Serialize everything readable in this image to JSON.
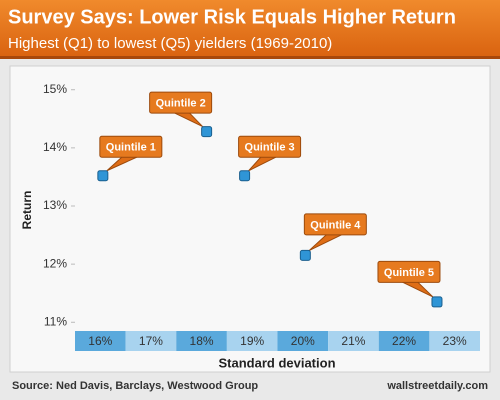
{
  "chart_data": {
    "type": "scatter",
    "title": "Survey Says: Lower Risk Equals Higher Return",
    "subtitle": "Highest (Q1) to lowest (Q5) yielders (1969-2010)",
    "x_label": "Standard deviation",
    "y_label": "Return",
    "x": [
      16.05,
      18.1,
      18.85,
      20.05,
      22.65
    ],
    "values": [
      13.52,
      14.28,
      13.52,
      12.15,
      11.35
    ],
    "point_labels": [
      "Quintile 1",
      "Quintile 2",
      "Quintile 3",
      "Quintile 4",
      "Quintile 5"
    ],
    "color": "#2f95d6",
    "xlim": [
      15.5,
      23.5
    ],
    "xticks": [
      {
        "value": 16,
        "label": "16%"
      },
      {
        "value": 17,
        "label": "17%"
      },
      {
        "value": 18,
        "label": "18%"
      },
      {
        "value": 19,
        "label": "19%"
      },
      {
        "value": 20,
        "label": "20%"
      },
      {
        "value": 21,
        "label": "21%"
      },
      {
        "value": 22,
        "label": "22%"
      },
      {
        "value": 23,
        "label": "23%"
      }
    ],
    "ylim": [
      10.85,
      15.15
    ],
    "yticks": [
      {
        "value": 11,
        "label": "11%"
      },
      {
        "value": 12,
        "label": "12%"
      },
      {
        "value": 13,
        "label": "13%"
      },
      {
        "value": 14,
        "label": "14%"
      },
      {
        "value": 15,
        "label": "15%"
      }
    ],
    "source": "Source: Ned Davis, Barclays, Westwood Group",
    "site": "wallstreetdaily.com"
  }
}
